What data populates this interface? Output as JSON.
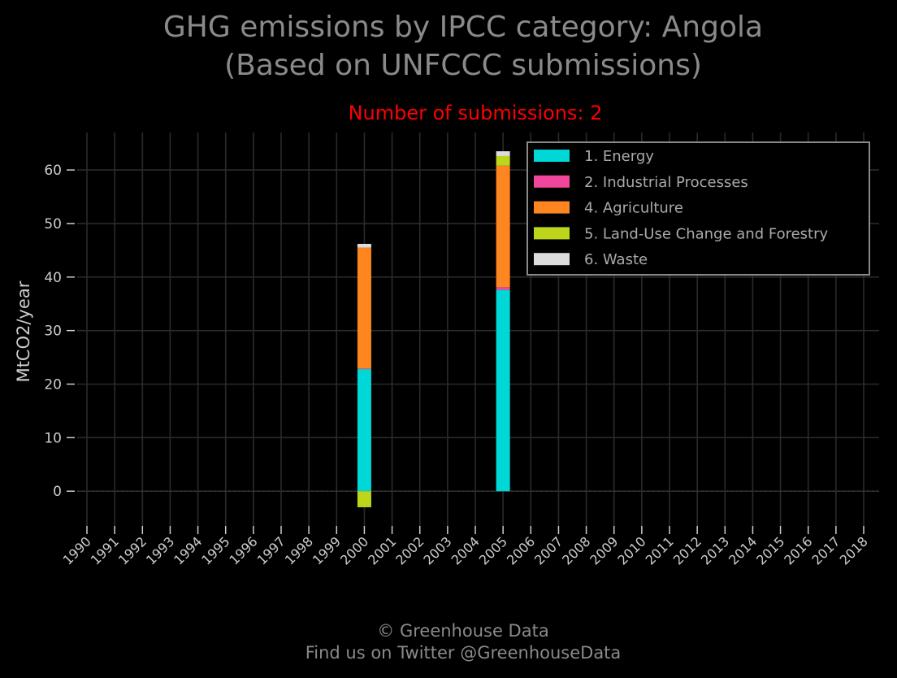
{
  "title_line1": "GHG emissions by IPCC category: Angola",
  "title_line2": "(Based on UNFCCC submissions)",
  "footer_line1": "© Greenhouse Data",
  "footer_line2": "Find us on Twitter @GreenhouseData",
  "chart_data": {
    "type": "bar",
    "stacked": true,
    "subtitle": "Number of submissions: 2",
    "subtitle_color": "#ff0000",
    "ylabel": "MtCO2/year",
    "xlabel": "",
    "ylim": [
      -6.5,
      67
    ],
    "yticks": [
      0,
      10,
      20,
      30,
      40,
      50,
      60
    ],
    "categories": [
      "1990",
      "1991",
      "1992",
      "1993",
      "1994",
      "1995",
      "1996",
      "1997",
      "1998",
      "1999",
      "2000",
      "2001",
      "2002",
      "2003",
      "2004",
      "2005",
      "2006",
      "2007",
      "2008",
      "2009",
      "2010",
      "2011",
      "2012",
      "2013",
      "2014",
      "2015",
      "2016",
      "2017",
      "2018"
    ],
    "grid": true,
    "legend_position": "top-right",
    "series": [
      {
        "name": "1. Energy",
        "color": "#00d8d8",
        "values": {
          "2000": 22.8,
          "2005": 37.6
        }
      },
      {
        "name": "2. Industrial Processes",
        "color": "#f0479c",
        "values": {
          "2000": 0.1,
          "2005": 0.5
        }
      },
      {
        "name": "4. Agriculture",
        "color": "#ff8520",
        "values": {
          "2000": 22.6,
          "2005": 22.7
        }
      },
      {
        "name": "5. Land-Use Change and Forestry",
        "color": "#bdd61c",
        "values": {
          "2000": -3.0,
          "2005": 1.8
        }
      },
      {
        "name": "6. Waste",
        "color": "#dcdcdc",
        "values": {
          "2000": 0.7,
          "2005": 0.9
        }
      }
    ]
  }
}
